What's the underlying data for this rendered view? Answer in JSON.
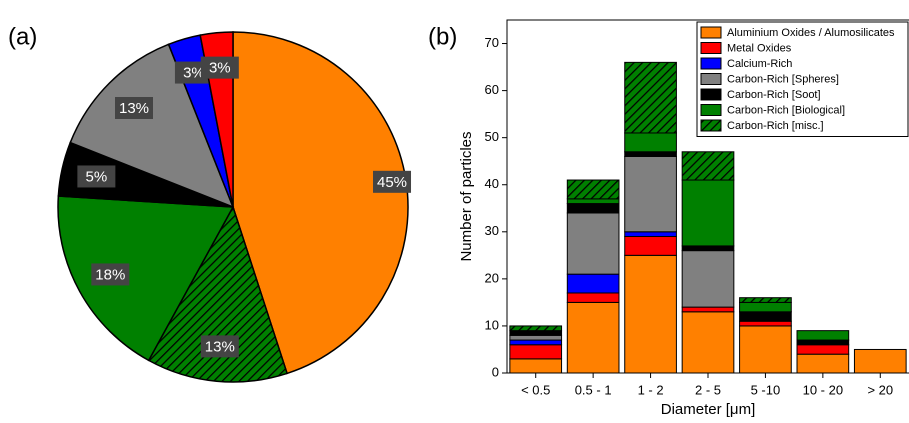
{
  "chart_data": [
    {
      "type": "pie",
      "panel_label": "(a)",
      "values": [
        45,
        13,
        18,
        5,
        13,
        3,
        3
      ],
      "value_labels": [
        "45%",
        "13%",
        "18%",
        "5%",
        "13%",
        "3%",
        "3%"
      ],
      "colors": [
        "#ff8000",
        "#008000",
        "#008000",
        "#000000",
        "#808080",
        "#0000ff",
        "#ff0000"
      ],
      "hatch": [
        false,
        true,
        false,
        false,
        false,
        false,
        false
      ]
    },
    {
      "type": "stacked_bar",
      "panel_label": "(b)",
      "x_label": "Diameter [μm]",
      "y_label": "Number of particles",
      "categories": [
        "< 0.5",
        "0.5 - 1",
        "1 - 2",
        "2 - 5",
        "5 -10",
        "10 - 20",
        "> 20"
      ],
      "ylim": [
        0,
        75
      ],
      "yticks": [
        0,
        10,
        20,
        30,
        40,
        50,
        60,
        70
      ],
      "legend": "top-right",
      "series": [
        {
          "name": "Aluminium Oxides / Alumosilicates",
          "color": "#ff8000",
          "values": [
            3,
            15,
            25,
            13,
            10,
            4,
            5
          ]
        },
        {
          "name": "Metal Oxides",
          "color": "#ff0000",
          "values": [
            3,
            2,
            4,
            1,
            1,
            2,
            0
          ]
        },
        {
          "name": "Calcium-Rich",
          "color": "#0000ff",
          "values": [
            1,
            4,
            1,
            0,
            0,
            0,
            0
          ]
        },
        {
          "name": "Carbon-Rich [Spheres]",
          "color": "#808080",
          "values": [
            1,
            13,
            16,
            12,
            0,
            0,
            0
          ]
        },
        {
          "name": "Carbon-Rich [Soot]",
          "color": "#000000",
          "values": [
            1,
            2,
            1,
            1,
            2,
            1,
            0
          ]
        },
        {
          "name": "Carbon-Rich [Biological]",
          "color": "#008000",
          "values": [
            0,
            1,
            4,
            14,
            2,
            2,
            0
          ]
        },
        {
          "name": "Carbon-Rich [misc.]",
          "color": "#008000",
          "hatch": true,
          "values": [
            1,
            4,
            15,
            6,
            1,
            0,
            0
          ]
        }
      ]
    }
  ]
}
